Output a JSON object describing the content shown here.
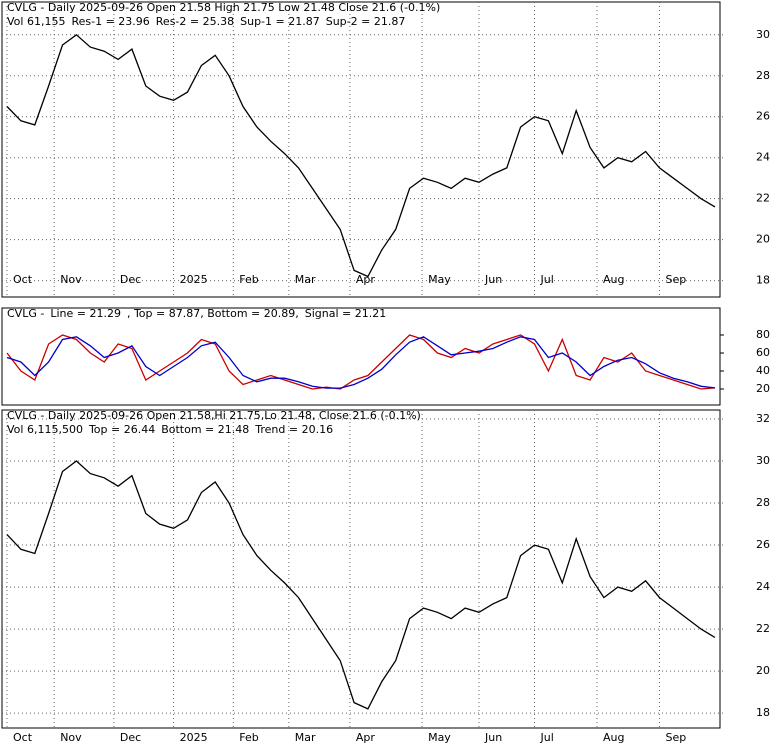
{
  "chart_data": [
    {
      "type": "line",
      "header": [
        [
          {
            "text": "CVLG - Daily 2025-09-26 Open 21.58  High 21.75  Low 21.48  Close 21.6 (-0.1%)",
            "color": "#000000"
          }
        ],
        [
          {
            "text": "Vol 61,155",
            "color": "#000000"
          },
          {
            "text": "Res-1 = 23.96",
            "color": "#cc00cc"
          },
          {
            "text": "Res-2 = 25.38",
            "color": "#cc0000"
          },
          {
            "text": "Sup-1 = 21.87",
            "color": "#0000cc"
          },
          {
            "text": "Sup-2 = 21.87",
            "color": "#009900"
          }
        ]
      ],
      "series": [
        {
          "name": "Close",
          "color": "#000000",
          "values": [
            26.5,
            25.8,
            25.6,
            27.5,
            29.5,
            30.0,
            29.4,
            29.2,
            28.8,
            29.3,
            27.5,
            27.0,
            26.8,
            27.2,
            28.5,
            29.0,
            28.0,
            26.5,
            25.5,
            24.8,
            24.2,
            23.5,
            22.5,
            21.5,
            20.5,
            18.5,
            18.2,
            19.5,
            20.5,
            22.5,
            23.0,
            22.8,
            22.5,
            23.0,
            22.8,
            23.2,
            23.5,
            25.5,
            26.0,
            25.8,
            24.2,
            26.3,
            24.5,
            23.5,
            24.0,
            23.8,
            24.3,
            23.5,
            23.0,
            22.5,
            22.0,
            21.6
          ]
        }
      ],
      "ylim": [
        17.2,
        31.6
      ],
      "yticks": [
        30,
        28,
        26,
        24,
        22,
        20,
        18
      ],
      "xlim": [
        0,
        51
      ],
      "xticks": [
        {
          "value": 0,
          "label": "Oct"
        },
        {
          "value": 3.4,
          "label": "Nov"
        },
        {
          "value": 7.7,
          "label": "Dec"
        },
        {
          "value": 12,
          "label": "2025"
        },
        {
          "value": 16.3,
          "label": "Feb"
        },
        {
          "value": 20.3,
          "label": "Mar"
        },
        {
          "value": 24.7,
          "label": "Apr"
        },
        {
          "value": 29.9,
          "label": "May"
        },
        {
          "value": 34,
          "label": "Jun"
        },
        {
          "value": 38,
          "label": "Jul"
        },
        {
          "value": 42.5,
          "label": "Aug"
        },
        {
          "value": 47,
          "label": "Sep"
        }
      ],
      "grid": true
    },
    {
      "type": "line",
      "header": [
        [
          {
            "text": "CVLG - ",
            "color": "#000000"
          },
          {
            "text": "Line = 21.29",
            "color": "#cc0000"
          },
          {
            "text": ", Top = 87.87, Bottom = 20.89, ",
            "color": "#000000"
          },
          {
            "text": "Signal = 21.21",
            "color": "#0000cc"
          }
        ]
      ],
      "series": [
        {
          "name": "Line",
          "color": "#cc0000",
          "values": [
            60,
            40,
            30,
            70,
            80,
            75,
            60,
            50,
            70,
            65,
            30,
            40,
            50,
            60,
            75,
            70,
            40,
            25,
            30,
            35,
            30,
            25,
            20,
            22,
            20,
            30,
            35,
            50,
            65,
            80,
            75,
            60,
            55,
            65,
            60,
            70,
            75,
            80,
            70,
            40,
            75,
            35,
            30,
            55,
            50,
            60,
            40,
            35,
            30,
            25,
            20,
            21.29
          ]
        },
        {
          "name": "Signal",
          "color": "#0000cc",
          "values": [
            55,
            50,
            35,
            50,
            75,
            78,
            68,
            55,
            60,
            68,
            45,
            35,
            45,
            55,
            68,
            72,
            55,
            35,
            28,
            32,
            32,
            28,
            23,
            21,
            21,
            25,
            32,
            42,
            58,
            72,
            78,
            68,
            58,
            60,
            62,
            65,
            72,
            78,
            75,
            55,
            60,
            50,
            35,
            45,
            52,
            55,
            48,
            38,
            32,
            28,
            23,
            21.21
          ]
        }
      ],
      "ylim": [
        2.2,
        110
      ],
      "yticks": [
        80,
        60,
        40,
        20
      ],
      "xlim": [
        0,
        51
      ],
      "grid": false
    },
    {
      "type": "line",
      "header": [
        [
          {
            "text": "CVLG - Daily 2025-09-26 Open 21.58,Hi 21.75,Lo 21.48, Close 21.6 (-0.1%)",
            "color": "#000000"
          }
        ],
        [
          {
            "text": "Vol 6,115,500",
            "color": "#000000"
          },
          {
            "text": "Top = 26.44",
            "color": "#cc0000"
          },
          {
            "text": "Bottom = 21.48",
            "color": "#009900"
          },
          {
            "text": "Trend = 20.16",
            "color": "#0000cc"
          }
        ]
      ],
      "series": [
        {
          "name": "Close",
          "color": "#000000",
          "values": [
            26.5,
            25.8,
            25.6,
            27.5,
            29.5,
            30.0,
            29.4,
            29.2,
            28.8,
            29.3,
            27.5,
            27.0,
            26.8,
            27.2,
            28.5,
            29.0,
            28.0,
            26.5,
            25.5,
            24.8,
            24.2,
            23.5,
            22.5,
            21.5,
            20.5,
            18.5,
            18.2,
            19.5,
            20.5,
            22.5,
            23.0,
            22.8,
            22.5,
            23.0,
            22.8,
            23.2,
            23.5,
            25.5,
            26.0,
            25.8,
            24.2,
            26.3,
            24.5,
            23.5,
            24.0,
            23.8,
            24.3,
            23.5,
            23.0,
            22.5,
            22.0,
            21.6
          ]
        }
      ],
      "ylim": [
        17.29,
        32.43
      ],
      "yticks": [
        32,
        30,
        28,
        26,
        24,
        22,
        20,
        18
      ],
      "xlim": [
        0,
        51
      ],
      "xticks": [
        {
          "value": 0,
          "label": "Oct"
        },
        {
          "value": 3.4,
          "label": "Nov"
        },
        {
          "value": 7.7,
          "label": "Dec"
        },
        {
          "value": 12,
          "label": "2025"
        },
        {
          "value": 16.3,
          "label": "Feb"
        },
        {
          "value": 20.3,
          "label": "Mar"
        },
        {
          "value": 24.7,
          "label": "Apr"
        },
        {
          "value": 29.9,
          "label": "May"
        },
        {
          "value": 34,
          "label": "Jun"
        },
        {
          "value": 38,
          "label": "Jul"
        },
        {
          "value": 42.5,
          "label": "Aug"
        },
        {
          "value": 47,
          "label": "Sep"
        }
      ],
      "grid": true
    }
  ]
}
